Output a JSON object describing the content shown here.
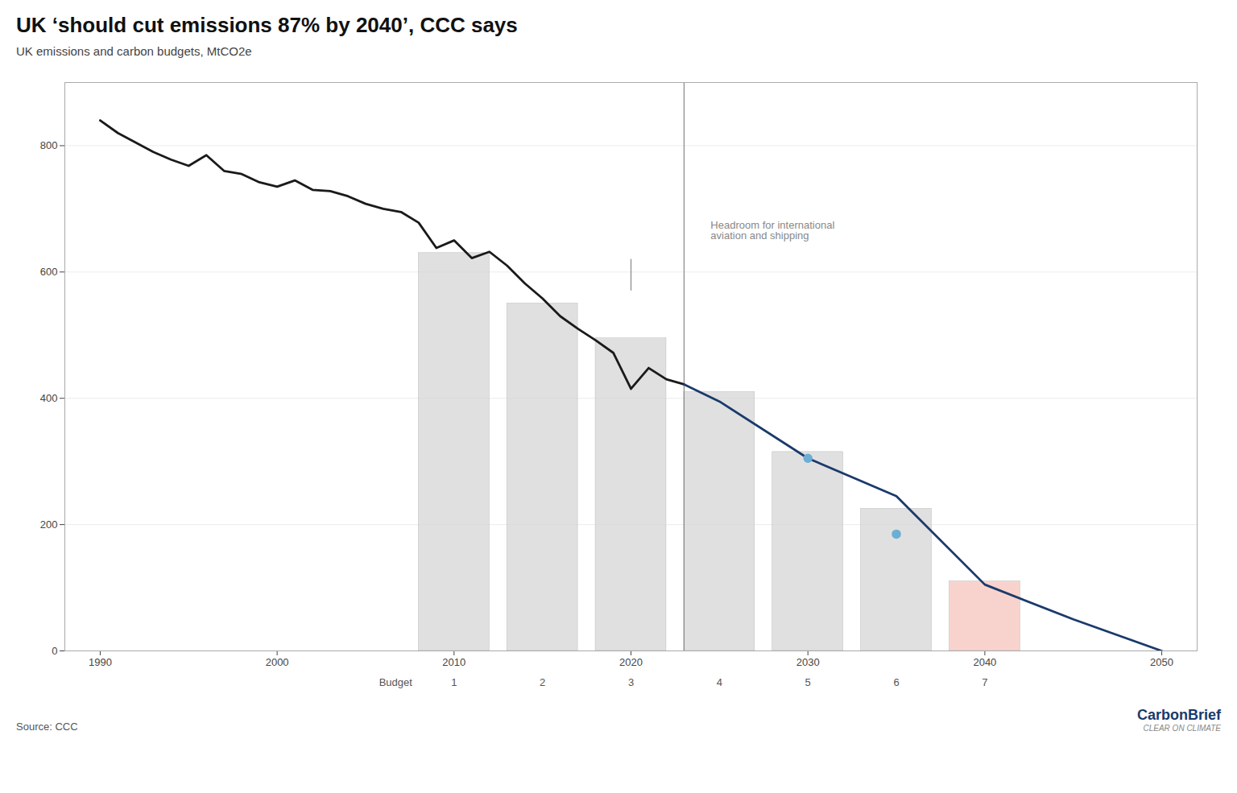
{
  "chart_data": {
    "type": "line",
    "title": "UK ‘should cut emissions 87% by 2040’, CCC says",
    "subtitle": "UK emissions and carbon budgets, MtCO2e",
    "source": "Source: CCC",
    "credits": [
      "CarbonBrief",
      "CLEAR ON CLIMATE"
    ],
    "xlim": [
      1988,
      2052
    ],
    "ylim": [
      0,
      900
    ],
    "xticks": [
      1990,
      2000,
      2010,
      2020,
      2030,
      2040,
      2050
    ],
    "yticks": [
      0,
      200,
      400,
      600,
      800
    ],
    "grid": true,
    "series": [
      {
        "type": "bar",
        "categories_title": "Budget",
        "categories": [
          "1",
          "2",
          "3",
          "4",
          "5",
          "6",
          "7"
        ],
        "x_start": [
          2008,
          2013,
          2018,
          2023,
          2028,
          2033,
          2038
        ],
        "x_end": [
          2012,
          2017,
          2022,
          2027,
          2032,
          2037,
          2042
        ],
        "values": [
          630,
          550,
          495,
          410,
          315,
          225,
          110
        ],
        "colors": [
          "#d3d3d3",
          "#d3d3d3",
          "#d3d3d3",
          "#d3d3d3",
          "#d3d3d3",
          "#d3d3d3",
          "#f5c0b8"
        ]
      },
      {
        "type": "line",
        "color": "#1a1a1a",
        "x": [
          1990,
          1991,
          1992,
          1993,
          1994,
          1995,
          1996,
          1997,
          1998,
          1999,
          2000,
          2001,
          2002,
          2003,
          2004,
          2005,
          2006,
          2007,
          2008,
          2009,
          2010,
          2011,
          2012,
          2013,
          2014,
          2015,
          2016,
          2017,
          2018,
          2019,
          2020,
          2021,
          2022,
          2023
        ],
        "values": [
          840,
          820,
          805,
          790,
          778,
          768,
          785,
          760,
          755,
          742,
          735,
          745,
          730,
          728,
          720,
          708,
          700,
          695,
          678,
          638,
          650,
          622,
          632,
          610,
          582,
          558,
          530,
          510,
          492,
          472,
          415,
          448,
          430,
          422
        ]
      },
      {
        "type": "line",
        "color": "#1a3a6b",
        "x": [
          2023,
          2025,
          2030,
          2035,
          2040,
          2045,
          2050
        ],
        "values": [
          422,
          395,
          305,
          245,
          105,
          50,
          0
        ]
      },
      {
        "type": "scatter",
        "color": "#6baed6",
        "marker": "circle",
        "x": [
          2030,
          2035
        ],
        "values": [
          305,
          185
        ]
      }
    ],
    "reference_lines": [
      {
        "x": 2023,
        "color": "#888888"
      },
      {
        "x": 2020,
        "y_from": 570,
        "y_to": 620,
        "color": "#888888"
      }
    ],
    "annotations": [
      {
        "text": "Headroom for international\naviation and shipping",
        "x": 2024.5,
        "y": 680,
        "color": "#888888"
      }
    ]
  }
}
